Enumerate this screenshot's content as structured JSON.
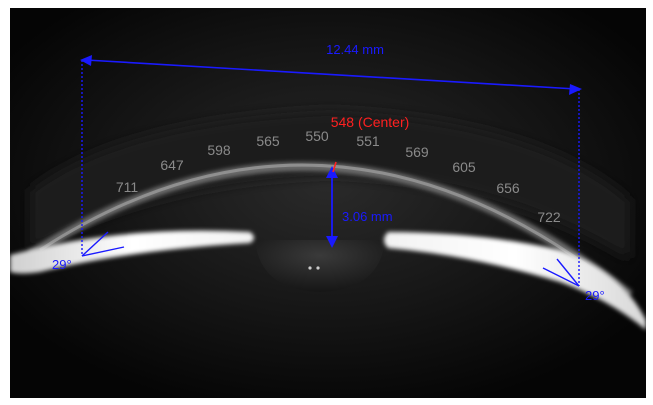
{
  "measurements": {
    "width": "12.44 mm",
    "depth": "3.06 mm",
    "angle_left": "29°",
    "angle_right": "29°",
    "center": "548 (Center)"
  },
  "thickness_labels": [
    "711",
    "647",
    "598",
    "565",
    "550",
    "551",
    "569",
    "605",
    "656",
    "722"
  ],
  "colors": {
    "measure_line": "#1a1aff",
    "center_label": "#ff2020",
    "thickness_label": "#8a8a8a",
    "background": "#0a0a0a"
  }
}
